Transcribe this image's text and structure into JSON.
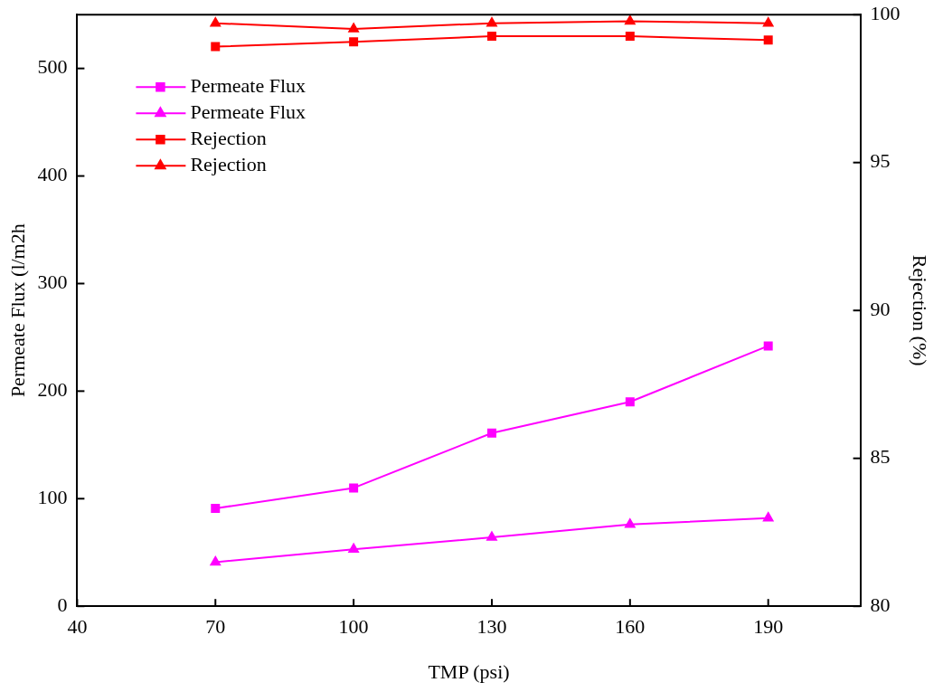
{
  "chart_data": {
    "type": "line",
    "xlabel": "TMP (psi)",
    "ylabel": "Permeate Flux (l/m2h",
    "y2label": "Rejection (%)",
    "x": [
      70,
      100,
      130,
      160,
      190
    ],
    "xlim": [
      40,
      210
    ],
    "xticks": [
      40,
      70,
      100,
      130,
      160,
      190
    ],
    "ylim": [
      0,
      550
    ],
    "yticks": [
      0,
      100,
      200,
      300,
      400,
      500
    ],
    "y2lim": [
      80,
      100
    ],
    "y2ticks": [
      80,
      85,
      90,
      95,
      100
    ],
    "legend": "top left",
    "grid": false,
    "series": [
      {
        "name": "Permeate Flux",
        "color": "#ff00ff",
        "marker": "square",
        "values": [
          91,
          110,
          161,
          190,
          242
        ]
      },
      {
        "name": "Permeate Flux",
        "color": "#ff00ff",
        "marker": "triangle",
        "values": [
          41,
          53,
          64,
          76,
          82
        ]
      },
      {
        "name": "Rejection",
        "color": "#ff0000",
        "marker": "square",
        "axis": "y2",
        "values": [
          98.92,
          99.08,
          99.27,
          99.27,
          99.14
        ]
      },
      {
        "name": "Rejection",
        "color": "#ff0000",
        "marker": "triangle",
        "axis": "y2",
        "values": [
          99.71,
          99.52,
          99.71,
          99.78,
          99.71
        ]
      }
    ]
  }
}
